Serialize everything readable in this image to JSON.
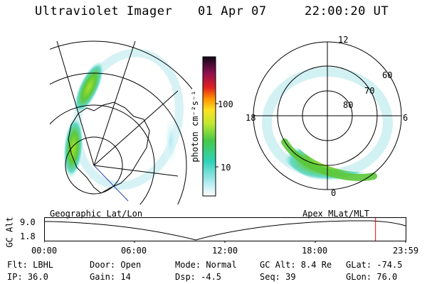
{
  "header": {
    "instrument": "Ultraviolet Imager",
    "date": "01 Apr 07",
    "time": "22:00:20 UT"
  },
  "colorbar": {
    "label": "photon cm⁻²s⁻¹",
    "ticks": [
      "100",
      "10"
    ],
    "scale": "log"
  },
  "polar_plot": {
    "mlt_labels": [
      "12",
      "18",
      "6",
      "0"
    ],
    "mlat_labels": [
      "60",
      "70",
      "80"
    ]
  },
  "projections": {
    "geographic": "Geographic Lat/Lon",
    "apex": "Apex MLat/MLT"
  },
  "altitude_plot": {
    "ylabel": "GC Alt",
    "y_ticks": [
      "9.0",
      "1.8"
    ],
    "x_ticks": [
      "00:00",
      "06:00",
      "12:00",
      "18:00",
      "23:59"
    ],
    "marker_time_hours": 22.0
  },
  "info": {
    "flt": "Flt: LBHL",
    "ip": "IP: 36.0",
    "door": "Door: Open",
    "gain": "Gain: 14",
    "mode": "Mode: Normal",
    "dsp": "Dsp:   -4.5",
    "gc_alt": "GC Alt: 8.4 Re",
    "seq": "Seq: 39",
    "glat": "GLat: -74.5",
    "glon": "GLon:  76.0"
  },
  "colors": {
    "marker": "#ff0000",
    "aurora_low": "#aeeaf0",
    "aurora_mid": "#60d8c8",
    "aurora_high": "#5cc83a",
    "aurora_peak": "#a6e02a"
  }
}
